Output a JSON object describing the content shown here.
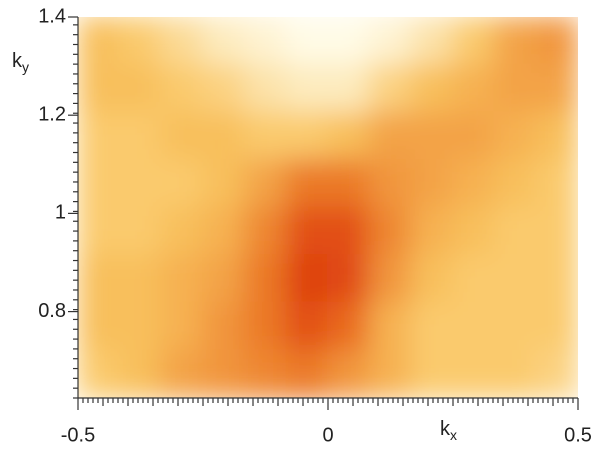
{
  "chart_data": {
    "type": "heatmap",
    "x_label": {
      "base": "k",
      "subscript": "x"
    },
    "y_label": {
      "base": "k",
      "subscript": "y"
    },
    "xlim": [
      -0.5,
      0.5
    ],
    "xticks": [
      -0.5,
      0,
      0.5
    ],
    "ylim": [
      0.624,
      1.4
    ],
    "yticks": [
      0.8,
      1,
      1.2,
      1.4
    ],
    "colormap": [
      "#fffbe6",
      "#f9c45f",
      "#e8661a",
      "#d9300c"
    ],
    "z": [
      [
        0.35,
        0.3,
        0.2,
        0.1,
        0.05,
        0,
        0,
        0.05,
        0.15,
        0.3,
        0.45,
        0.5
      ],
      [
        0.35,
        0.35,
        0.3,
        0.25,
        0.15,
        0.1,
        0.1,
        0.25,
        0.35,
        0.4,
        0.45,
        0.45
      ],
      [
        0.3,
        0.3,
        0.35,
        0.35,
        0.3,
        0.3,
        0.35,
        0.45,
        0.45,
        0.45,
        0.4,
        0.35
      ],
      [
        0.3,
        0.3,
        0.3,
        0.35,
        0.45,
        0.6,
        0.6,
        0.5,
        0.45,
        0.4,
        0.35,
        0.3
      ],
      [
        0.3,
        0.3,
        0.35,
        0.4,
        0.55,
        0.8,
        0.8,
        0.55,
        0.4,
        0.35,
        0.3,
        0.3
      ],
      [
        0.35,
        0.35,
        0.4,
        0.45,
        0.6,
        0.9,
        0.85,
        0.5,
        0.35,
        0.3,
        0.3,
        0.3
      ],
      [
        0.35,
        0.35,
        0.4,
        0.5,
        0.6,
        0.8,
        0.65,
        0.4,
        0.3,
        0.3,
        0.3,
        0.3
      ],
      [
        0.3,
        0.35,
        0.45,
        0.5,
        0.55,
        0.6,
        0.5,
        0.4,
        0.3,
        0.3,
        0.3,
        0.25
      ]
    ]
  }
}
